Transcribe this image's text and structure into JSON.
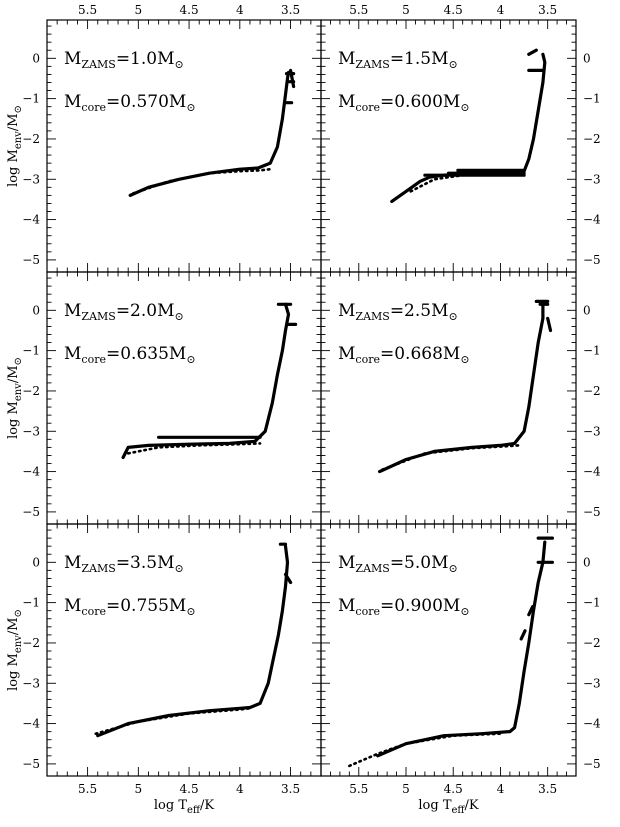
{
  "chart_data": {
    "type": "line",
    "layout": "grid 3x2",
    "xlabel": "log T_eff/K",
    "ylabel": "log M_env/M_⊙",
    "xlim": [
      5.9,
      3.2
    ],
    "ylim": [
      -5.3,
      0.95
    ],
    "x_ticks": [
      5.5,
      5,
      4.5,
      4,
      3.5
    ],
    "y_ticks": [
      -5,
      -4,
      -3,
      -2,
      -1,
      0
    ],
    "x_tick_labels": [
      "5.5",
      "5",
      "4.5",
      "4",
      "3.5"
    ],
    "y_tick_labels": [
      "−5",
      "−4",
      "−3",
      "−2",
      "−1",
      "0"
    ],
    "panels": [
      {
        "m_zams": "1.0",
        "m_core": "0.570",
        "solid": [
          [
            5.08,
            -3.4
          ],
          [
            4.9,
            -3.2
          ],
          [
            4.6,
            -3.0
          ],
          [
            4.3,
            -2.85
          ],
          [
            4.0,
            -2.75
          ],
          [
            3.82,
            -2.72
          ],
          [
            3.7,
            -2.6
          ],
          [
            3.63,
            -2.2
          ],
          [
            3.58,
            -1.5
          ],
          [
            3.55,
            -0.9
          ],
          [
            3.53,
            -0.5
          ],
          [
            3.52,
            -0.35
          ]
        ],
        "dotted": [
          [
            5.05,
            -3.35
          ],
          [
            4.7,
            -3.05
          ],
          [
            4.3,
            -2.85
          ],
          [
            4.0,
            -2.8
          ],
          [
            3.8,
            -2.78
          ],
          [
            3.7,
            -2.75
          ]
        ],
        "extras": [
          [
            [
              3.55,
              -1.1
            ],
            [
              3.49,
              -1.1
            ]
          ],
          [
            [
              3.54,
              -0.38
            ],
            [
              3.47,
              -0.38
            ]
          ],
          [
            [
              3.52,
              -0.58
            ],
            [
              3.47,
              -0.58
            ]
          ],
          [
            [
              3.5,
              -0.3
            ],
            [
              3.47,
              -0.7
            ]
          ]
        ]
      },
      {
        "m_zams": "1.5",
        "m_core": "0.600",
        "solid": [
          [
            5.15,
            -3.55
          ],
          [
            5.0,
            -3.3
          ],
          [
            4.85,
            -3.05
          ],
          [
            4.75,
            -2.95
          ],
          [
            4.6,
            -2.9
          ],
          [
            4.3,
            -2.85
          ],
          [
            4.0,
            -2.85
          ],
          [
            3.75,
            -2.8
          ],
          [
            3.7,
            -2.5
          ],
          [
            3.65,
            -2.0
          ],
          [
            3.6,
            -1.3
          ],
          [
            3.55,
            -0.6
          ],
          [
            3.53,
            -0.1
          ],
          [
            3.55,
            0.1
          ]
        ],
        "dotted": [
          [
            4.95,
            -3.3
          ],
          [
            4.7,
            -3.0
          ],
          [
            4.4,
            -2.9
          ],
          [
            4.0,
            -2.88
          ],
          [
            3.75,
            -2.85
          ]
        ],
        "extras": [
          [
            [
              4.8,
              -2.9
            ],
            [
              3.75,
              -2.9
            ]
          ],
          [
            [
              4.55,
              -2.85
            ],
            [
              3.75,
              -2.85
            ]
          ],
          [
            [
              4.45,
              -2.78
            ],
            [
              3.75,
              -2.78
            ]
          ],
          [
            [
              3.7,
              -0.3
            ],
            [
              3.55,
              -0.3
            ]
          ],
          [
            [
              3.7,
              0.1
            ],
            [
              3.62,
              0.2
            ]
          ]
        ]
      },
      {
        "m_zams": "2.0",
        "m_core": "0.635",
        "solid": [
          [
            5.15,
            -3.65
          ],
          [
            5.1,
            -3.4
          ],
          [
            4.9,
            -3.35
          ],
          [
            4.5,
            -3.32
          ],
          [
            4.1,
            -3.3
          ],
          [
            3.85,
            -3.25
          ],
          [
            3.75,
            -3.0
          ],
          [
            3.68,
            -2.3
          ],
          [
            3.63,
            -1.6
          ],
          [
            3.58,
            -1.0
          ],
          [
            3.55,
            -0.5
          ],
          [
            3.52,
            -0.1
          ],
          [
            3.55,
            0.15
          ]
        ],
        "dotted": [
          [
            5.1,
            -3.55
          ],
          [
            4.8,
            -3.4
          ],
          [
            4.4,
            -3.35
          ],
          [
            4.0,
            -3.32
          ],
          [
            3.8,
            -3.3
          ]
        ],
        "extras": [
          [
            [
              4.8,
              -3.15
            ],
            [
              3.8,
              -3.15
            ]
          ],
          [
            [
              3.62,
              0.15
            ],
            [
              3.5,
              0.15
            ]
          ],
          [
            [
              3.53,
              -0.35
            ],
            [
              3.45,
              -0.35
            ]
          ]
        ]
      },
      {
        "m_zams": "2.5",
        "m_core": "0.668",
        "solid": [
          [
            5.28,
            -4.0
          ],
          [
            5.0,
            -3.7
          ],
          [
            4.7,
            -3.5
          ],
          [
            4.3,
            -3.4
          ],
          [
            4.0,
            -3.35
          ],
          [
            3.85,
            -3.3
          ],
          [
            3.75,
            -3.0
          ],
          [
            3.7,
            -2.4
          ],
          [
            3.65,
            -1.6
          ],
          [
            3.6,
            -0.8
          ],
          [
            3.55,
            -0.2
          ],
          [
            3.55,
            0.2
          ]
        ],
        "dotted": [
          [
            5.25,
            -3.95
          ],
          [
            4.8,
            -3.55
          ],
          [
            4.3,
            -3.42
          ],
          [
            4.0,
            -3.38
          ],
          [
            3.8,
            -3.35
          ]
        ],
        "extras": [
          [
            [
              3.62,
              0.22
            ],
            [
              3.5,
              0.22
            ]
          ],
          [
            [
              3.58,
              0.15
            ],
            [
              3.5,
              0.15
            ]
          ],
          [
            [
              3.5,
              -0.2
            ],
            [
              3.47,
              -0.5
            ]
          ]
        ]
      },
      {
        "m_zams": "3.5",
        "m_core": "0.755",
        "solid": [
          [
            5.4,
            -4.3
          ],
          [
            5.1,
            -4.0
          ],
          [
            4.7,
            -3.8
          ],
          [
            4.3,
            -3.68
          ],
          [
            4.0,
            -3.62
          ],
          [
            3.9,
            -3.6
          ],
          [
            3.8,
            -3.5
          ],
          [
            3.72,
            -3.0
          ],
          [
            3.67,
            -2.4
          ],
          [
            3.62,
            -1.8
          ],
          [
            3.58,
            -1.2
          ],
          [
            3.55,
            -0.6
          ],
          [
            3.53,
            0.0
          ],
          [
            3.55,
            0.4
          ]
        ],
        "dotted": [
          [
            5.42,
            -4.25
          ],
          [
            5.0,
            -3.95
          ],
          [
            4.5,
            -3.75
          ],
          [
            4.0,
            -3.65
          ],
          [
            3.9,
            -3.62
          ]
        ],
        "extras": [
          [
            [
              3.6,
              0.45
            ],
            [
              3.55,
              0.45
            ]
          ],
          [
            [
              3.55,
              -0.3
            ],
            [
              3.5,
              -0.5
            ]
          ]
        ]
      },
      {
        "m_zams": "5.0",
        "m_core": "0.900",
        "solid": [
          [
            5.3,
            -4.8
          ],
          [
            5.0,
            -4.5
          ],
          [
            4.6,
            -4.3
          ],
          [
            4.2,
            -4.25
          ],
          [
            3.9,
            -4.2
          ],
          [
            3.85,
            -4.1
          ],
          [
            3.8,
            -3.5
          ],
          [
            3.75,
            -2.7
          ],
          [
            3.7,
            -2.0
          ],
          [
            3.65,
            -1.2
          ],
          [
            3.6,
            -0.5
          ],
          [
            3.55,
            0.0
          ],
          [
            3.53,
            0.5
          ]
        ],
        "dotted": [
          [
            5.6,
            -5.05
          ],
          [
            5.3,
            -4.75
          ],
          [
            5.0,
            -4.5
          ],
          [
            4.5,
            -4.3
          ],
          [
            4.0,
            -4.25
          ]
        ],
        "extras": [
          [
            [
              3.6,
              0.0
            ],
            [
              3.45,
              0.0
            ]
          ],
          [
            [
              3.6,
              0.6
            ],
            [
              3.45,
              0.6
            ]
          ],
          [
            [
              3.7,
              -1.3
            ],
            [
              3.66,
              -1.1
            ]
          ],
          [
            [
              3.78,
              -1.9
            ],
            [
              3.74,
              -1.7
            ]
          ]
        ]
      }
    ]
  }
}
